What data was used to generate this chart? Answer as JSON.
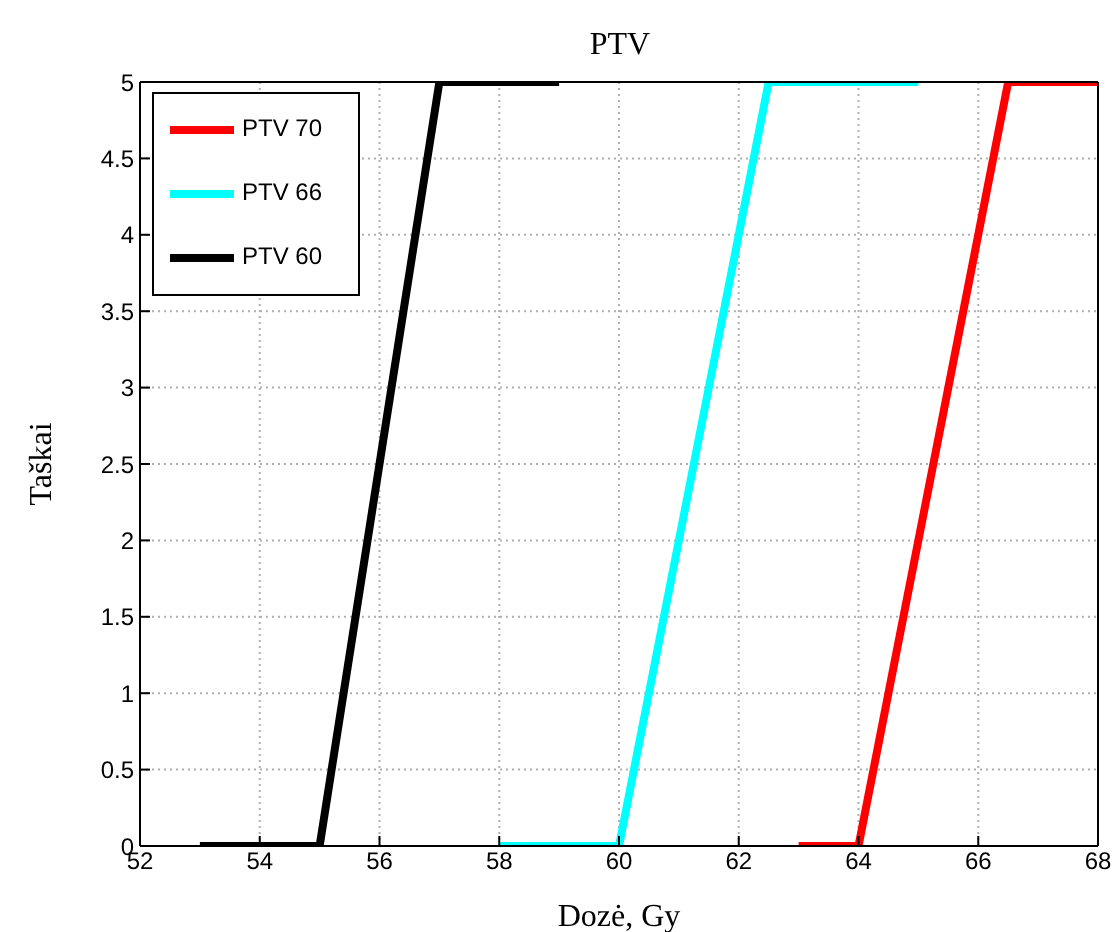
{
  "chart_data": {
    "type": "line",
    "title": "PTV",
    "xlabel": "Dozė, Gy",
    "ylabel": "Taškai",
    "series": [
      {
        "name": "PTV 70",
        "color": "#ff0000",
        "x": [
          63,
          64,
          66.5,
          68
        ],
        "values": [
          0,
          0,
          5,
          5
        ]
      },
      {
        "name": "PTV 66",
        "color": "#00ffff",
        "x": [
          58,
          60,
          62.5,
          65
        ],
        "values": [
          0,
          0,
          5,
          5
        ]
      },
      {
        "name": "PTV 60",
        "color": "#000000",
        "x": [
          53,
          55,
          57,
          59
        ],
        "values": [
          0,
          0,
          5,
          5
        ]
      }
    ],
    "xlim": [
      52,
      68
    ],
    "xticks": [
      52,
      54,
      56,
      58,
      60,
      62,
      64,
      66,
      68
    ],
    "ylim": [
      0,
      5
    ],
    "yticks": [
      0,
      0.5,
      1,
      1.5,
      2,
      2.5,
      3,
      3.5,
      4,
      4.5,
      5
    ],
    "grid": true,
    "legend": "top left",
    "marker": "none",
    "line_style": "solid"
  }
}
